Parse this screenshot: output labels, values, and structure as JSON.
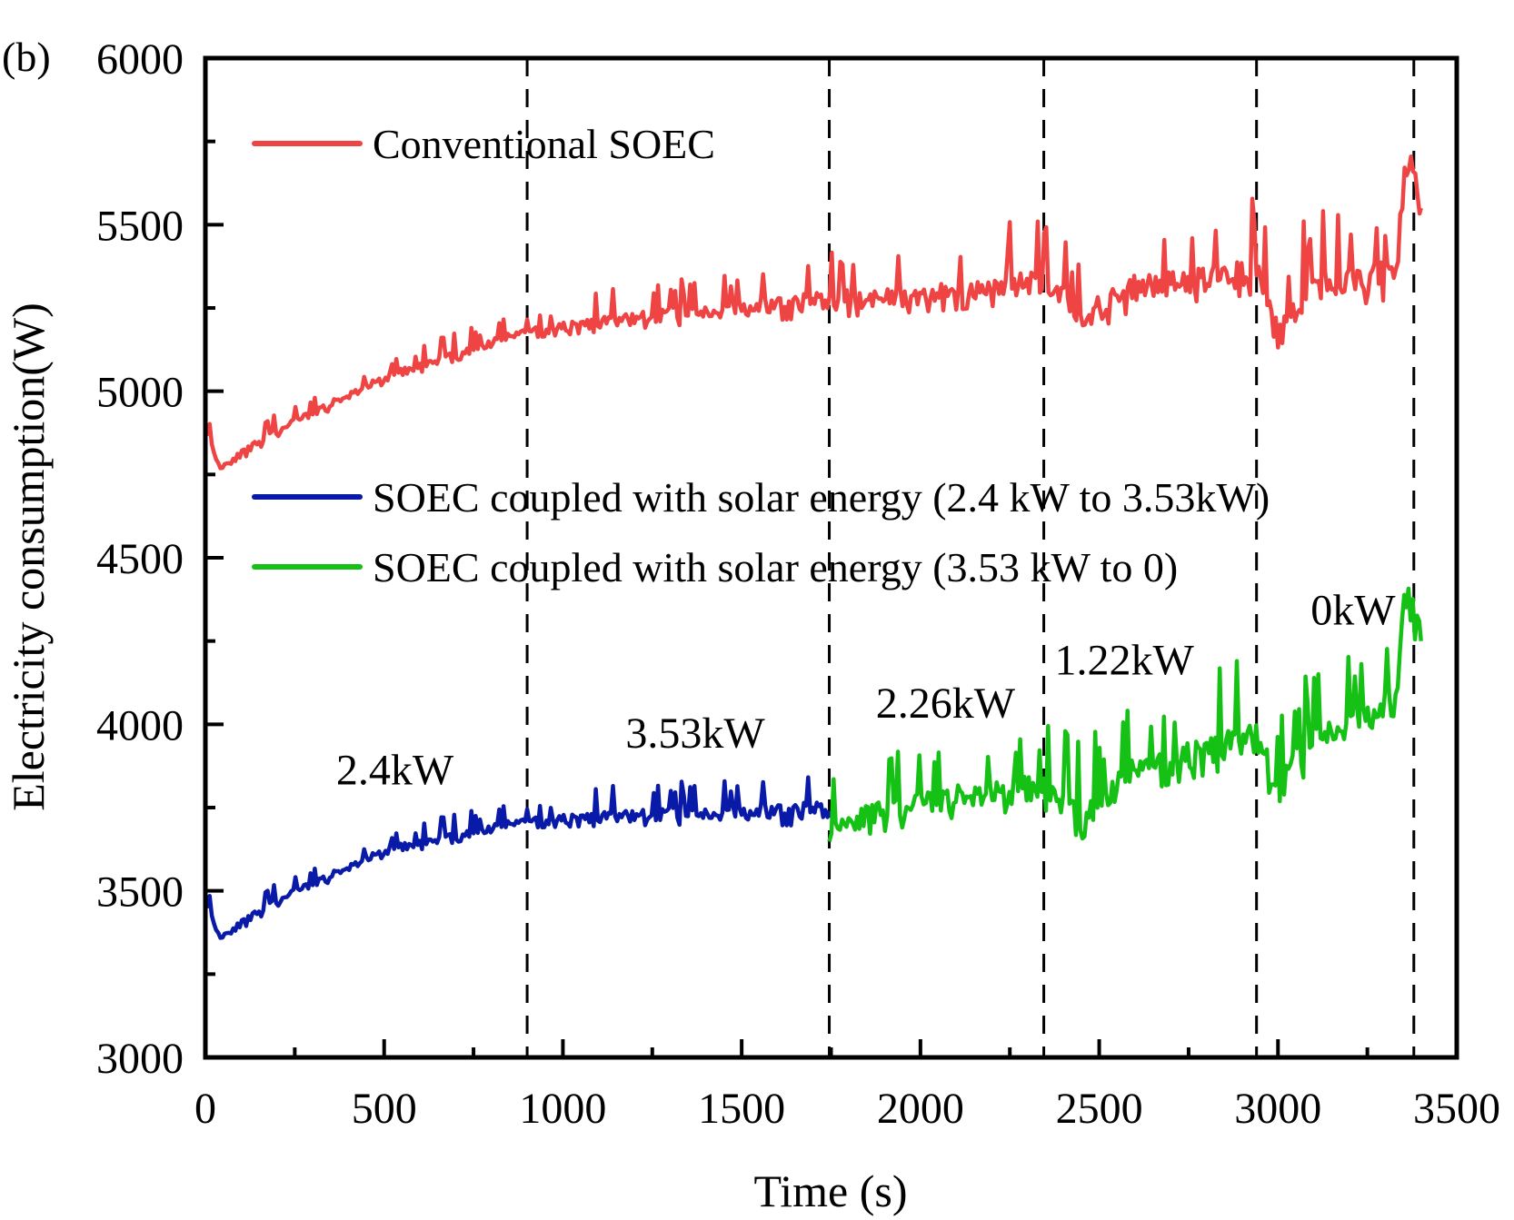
{
  "chart_data": {
    "type": "line",
    "panel_label": "(b)",
    "title": "",
    "xlabel": "Time (s)",
    "ylabel": "Electricity consumption(W)",
    "xlim": [
      0,
      3500
    ],
    "ylim": [
      3000,
      6000
    ],
    "x_ticks": [
      0,
      500,
      1000,
      1500,
      2000,
      2500,
      3000,
      3500
    ],
    "x_tick_labels": [
      "0",
      "500",
      "1000",
      "1500",
      "2000",
      "2500",
      "3000",
      "3500"
    ],
    "y_ticks": [
      3000,
      3500,
      4000,
      4500,
      5000,
      5500,
      6000
    ],
    "y_tick_labels": [
      "3000",
      "3500",
      "4000",
      "4500",
      "5000",
      "5500",
      "6000"
    ],
    "x_minor_step": 250,
    "y_minor_step": 250,
    "grid": false,
    "legend_placement": "upper-left (conventional) and middle-left (coupled)",
    "vertical_markers": [
      900,
      1745,
      2345,
      2940,
      3380
    ],
    "series": [
      {
        "name": "Conventional SOEC",
        "color": "#ef4444",
        "trend": [
          [
            0,
            4900
          ],
          [
            40,
            4770
          ],
          [
            200,
            4880
          ],
          [
            500,
            5040
          ],
          [
            900,
            5180
          ],
          [
            1300,
            5230
          ],
          [
            1745,
            5270
          ],
          [
            2100,
            5300
          ],
          [
            2345,
            5330
          ],
          [
            2450,
            5220
          ],
          [
            2600,
            5310
          ],
          [
            2940,
            5360
          ],
          [
            3000,
            5200
          ],
          [
            3100,
            5310
          ],
          [
            3330,
            5350
          ],
          [
            3360,
            5720
          ],
          [
            3400,
            5550
          ]
        ],
        "spike_amplitude": [
          [
            0,
            40
          ],
          [
            900,
            50
          ],
          [
            1745,
            120
          ],
          [
            2345,
            150
          ],
          [
            2940,
            170
          ],
          [
            3330,
            180
          ]
        ]
      },
      {
        "name": "SOEC coupled with solar energy (2.4 kW to 3.53kW)",
        "color": "#0a1aa8",
        "trend": [
          [
            0,
            3480
          ],
          [
            40,
            3360
          ],
          [
            200,
            3470
          ],
          [
            500,
            3620
          ],
          [
            900,
            3710
          ],
          [
            1300,
            3730
          ],
          [
            1745,
            3740
          ]
        ],
        "spike_amplitude": [
          [
            0,
            40
          ],
          [
            900,
            50
          ],
          [
            1745,
            110
          ]
        ]
      },
      {
        "name": "SOEC coupled with solar energy (3.53 kW to 0)",
        "color": "#16c116",
        "trend": [
          [
            1745,
            3700
          ],
          [
            2100,
            3780
          ],
          [
            2345,
            3810
          ],
          [
            2450,
            3720
          ],
          [
            2600,
            3860
          ],
          [
            2940,
            3960
          ],
          [
            3000,
            3800
          ],
          [
            3100,
            3960
          ],
          [
            3330,
            4060
          ],
          [
            3360,
            4440
          ],
          [
            3400,
            4250
          ]
        ],
        "spike_amplitude": [
          [
            1745,
            130
          ],
          [
            2345,
            160
          ],
          [
            2940,
            180
          ],
          [
            3330,
            190
          ]
        ]
      }
    ],
    "annotations": [
      {
        "text": "2.4kW",
        "x": 530,
        "y": 3820
      },
      {
        "text": "3.53kW",
        "x": 1370,
        "y": 3930
      },
      {
        "text": "2.26kW",
        "x": 2070,
        "y": 4020
      },
      {
        "text": "1.22kW",
        "x": 2570,
        "y": 4150
      },
      {
        "text": "0kW",
        "x": 3210,
        "y": 4300
      }
    ]
  }
}
